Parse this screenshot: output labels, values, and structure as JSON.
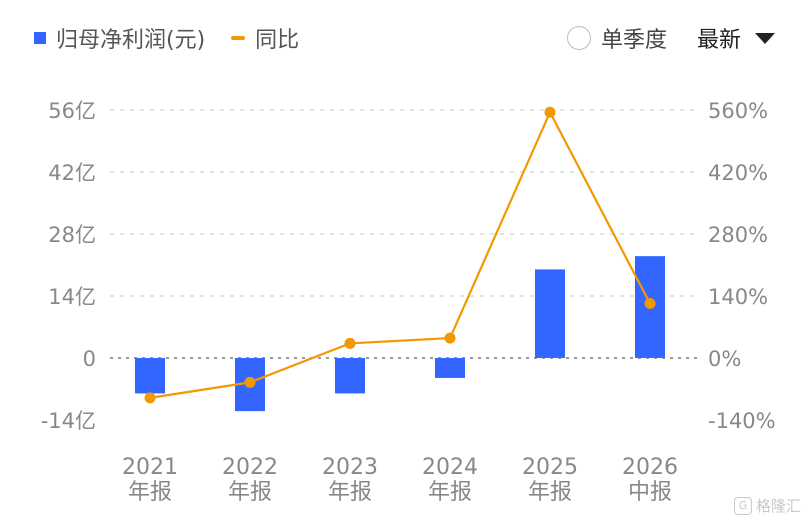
{
  "legend": {
    "bar_label": "归母净利润(元)",
    "line_label": "同比"
  },
  "controls": {
    "quarter_label": "单季度",
    "sort_label": "最新"
  },
  "watermark": {
    "text": "格隆汇",
    "mark": "G"
  },
  "colors": {
    "bar": "#3366ff",
    "line": "#f39800",
    "grid": "#d9d9d9",
    "axis_text": "#888888"
  },
  "chart_data": {
    "type": "bar",
    "categories": [
      {
        "year": "2021",
        "period": "年报"
      },
      {
        "year": "2022",
        "period": "年报"
      },
      {
        "year": "2023",
        "period": "年报"
      },
      {
        "year": "2024",
        "period": "年报"
      },
      {
        "year": "2025",
        "period": "年报"
      },
      {
        "year": "2026",
        "period": "中报"
      }
    ],
    "series": [
      {
        "name": "归母净利润(元)",
        "type": "bar",
        "axis": "left",
        "unit": "亿",
        "values": [
          -8.0,
          -12.0,
          -8.0,
          -4.5,
          20.0,
          23.0
        ]
      },
      {
        "name": "同比",
        "type": "line",
        "axis": "right",
        "unit": "%",
        "values": [
          -90,
          -55,
          33,
          45,
          555,
          123
        ]
      }
    ],
    "y_left": {
      "ticks": [
        "56亿",
        "42亿",
        "28亿",
        "14亿",
        "0",
        "-14亿"
      ],
      "range": [
        -14,
        56
      ]
    },
    "y_right": {
      "ticks": [
        "560%",
        "420%",
        "280%",
        "140%",
        "0%",
        "-140%"
      ],
      "range": [
        -140,
        560
      ]
    },
    "grid": true,
    "legend_position": "top-left"
  }
}
